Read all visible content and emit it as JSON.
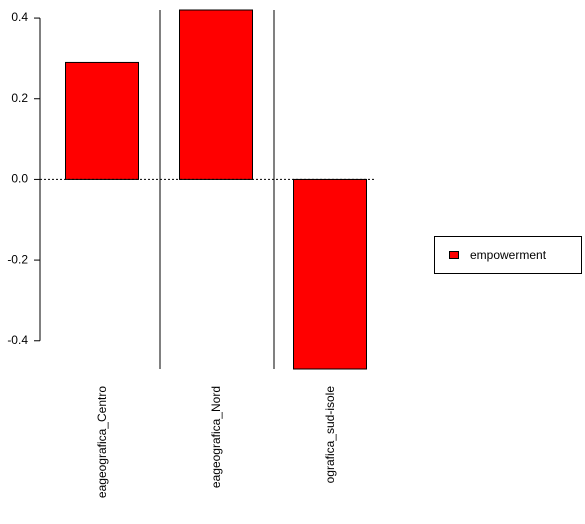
{
  "chart_data": {
    "type": "bar",
    "categories": [
      "eageografica_Centro",
      "eageografica_Nord",
      "ografica_sud-isole"
    ],
    "series": [
      {
        "name": "empowerment",
        "values": [
          0.29,
          0.47,
          -0.47
        ]
      }
    ],
    "title": "",
    "xlabel": "",
    "ylabel": "",
    "ylim": [
      -0.47,
      0.42
    ],
    "yticks": [
      {
        "value": -0.4,
        "label": "-0.4"
      },
      {
        "value": -0.2,
        "label": "-0.2"
      },
      {
        "value": 0.0,
        "label": "0.0"
      },
      {
        "value": 0.2,
        "label": "0.2"
      },
      {
        "value": 0.4,
        "label": "0.4"
      }
    ],
    "grid": false,
    "legend_position": "right",
    "bar_color": "#ff0000",
    "zero_line": "dotted"
  }
}
